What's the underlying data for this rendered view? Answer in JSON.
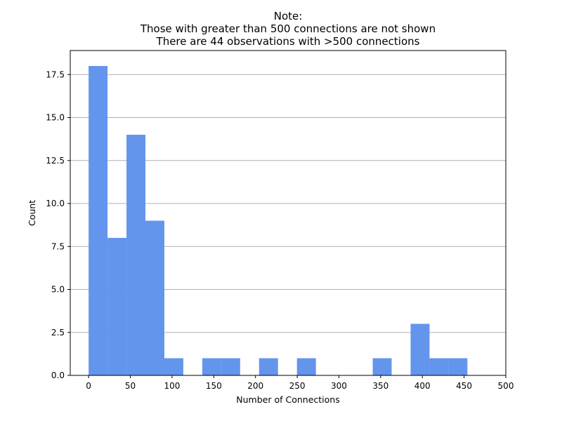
{
  "chart_data": {
    "type": "bar",
    "title_lines": [
      "Note:",
      "Those with greater than 500 connections are not shown",
      "There are 44 observations with >500 connections"
    ],
    "xlabel": "Number of Connections",
    "ylabel": "Count",
    "xlim": [
      -22,
      500
    ],
    "ylim": [
      0,
      18.9
    ],
    "x_ticks": [
      0,
      50,
      100,
      150,
      200,
      250,
      300,
      350,
      400,
      450,
      500
    ],
    "y_ticks": [
      0.0,
      2.5,
      5.0,
      7.5,
      10.0,
      12.5,
      15.0,
      17.5
    ],
    "y_tick_labels": [
      "0.0",
      "2.5",
      "5.0",
      "7.5",
      "10.0",
      "12.5",
      "15.0",
      "17.5"
    ],
    "grid": "y",
    "bar_color": "#6495ed",
    "bins": [
      {
        "start": 0,
        "end": 22.7,
        "count": 18
      },
      {
        "start": 22.7,
        "end": 45.4,
        "count": 8
      },
      {
        "start": 45.4,
        "end": 68.1,
        "count": 14
      },
      {
        "start": 68.1,
        "end": 90.8,
        "count": 9
      },
      {
        "start": 90.8,
        "end": 113.5,
        "count": 1
      },
      {
        "start": 113.5,
        "end": 136.2,
        "count": 0
      },
      {
        "start": 136.2,
        "end": 158.9,
        "count": 1
      },
      {
        "start": 158.9,
        "end": 181.6,
        "count": 1
      },
      {
        "start": 181.6,
        "end": 204.3,
        "count": 0
      },
      {
        "start": 204.3,
        "end": 227.0,
        "count": 1
      },
      {
        "start": 227.0,
        "end": 249.7,
        "count": 0
      },
      {
        "start": 249.7,
        "end": 272.4,
        "count": 1
      },
      {
        "start": 272.4,
        "end": 295.1,
        "count": 0
      },
      {
        "start": 295.1,
        "end": 317.8,
        "count": 0
      },
      {
        "start": 317.8,
        "end": 340.5,
        "count": 0
      },
      {
        "start": 340.5,
        "end": 363.2,
        "count": 1
      },
      {
        "start": 363.2,
        "end": 385.9,
        "count": 0
      },
      {
        "start": 385.9,
        "end": 408.6,
        "count": 3
      },
      {
        "start": 408.6,
        "end": 431.3,
        "count": 1
      },
      {
        "start": 431.3,
        "end": 454.0,
        "count": 1
      }
    ]
  }
}
